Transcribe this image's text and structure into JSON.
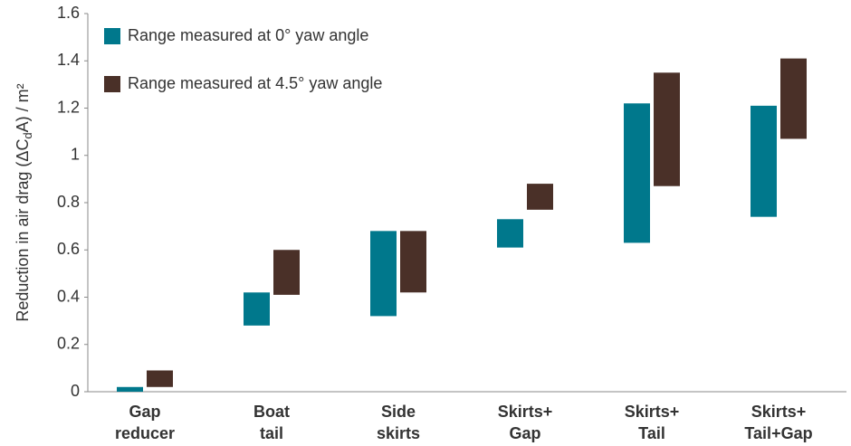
{
  "chart_data": {
    "type": "range-bar",
    "y_label": {
      "before": "Reduction in air drag (ΔC",
      "sub": "d",
      "after": "A) / m²"
    },
    "categories": [
      [
        "Gap",
        "reducer"
      ],
      [
        "Boat",
        "tail"
      ],
      [
        "Side",
        "skirts"
      ],
      [
        "Skirts+",
        "Gap"
      ],
      [
        "Skirts+",
        "Tail"
      ],
      [
        "Skirts+",
        "Tail+Gap"
      ]
    ],
    "series": [
      {
        "name": "Range measured at 0° yaw angle",
        "color": "#00788c",
        "values": [
          [
            0,
            0.02
          ],
          [
            0.28,
            0.42
          ],
          [
            0.32,
            0.68
          ],
          [
            0.61,
            0.73
          ],
          [
            0.63,
            1.22
          ],
          [
            0.74,
            1.21
          ]
        ]
      },
      {
        "name": "Range measured at 4.5° yaw angle",
        "color": "#4a3028",
        "values": [
          [
            0.02,
            0.09
          ],
          [
            0.41,
            0.6
          ],
          [
            0.42,
            0.68
          ],
          [
            0.77,
            0.88
          ],
          [
            0.87,
            1.35
          ],
          [
            1.07,
            1.41
          ]
        ]
      }
    ],
    "ylim": [
      0,
      1.6
    ],
    "yticks": [
      0,
      0.2,
      0.4,
      0.6,
      0.8,
      1,
      1.2,
      1.4,
      1.6
    ],
    "grid": false,
    "legend": "top-left"
  }
}
